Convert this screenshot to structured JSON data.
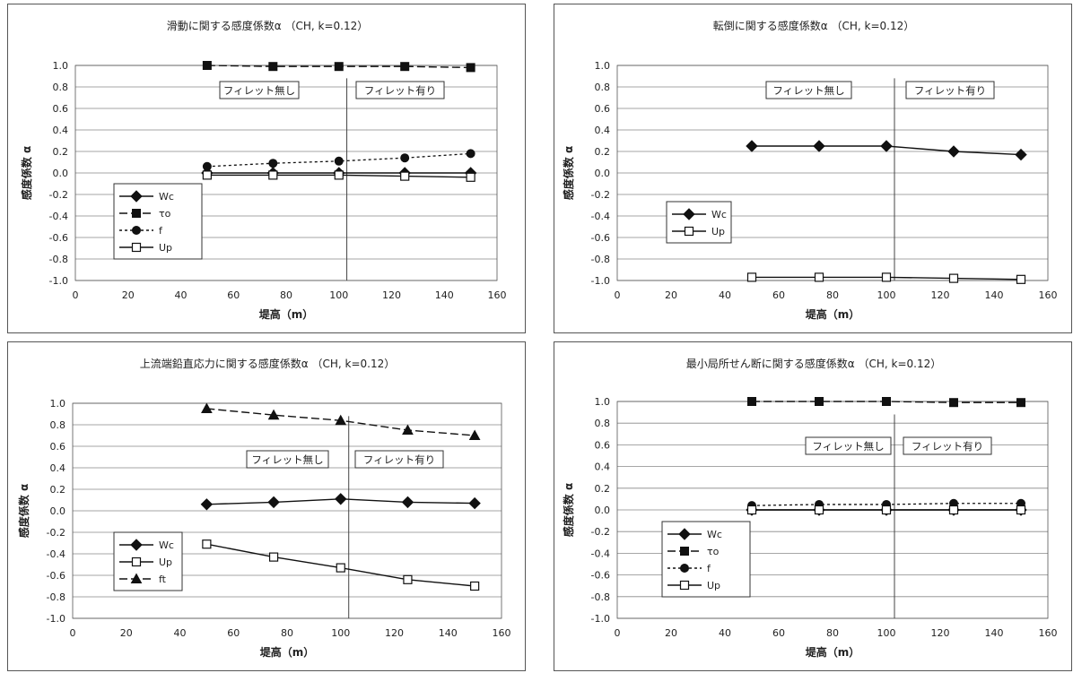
{
  "chart_data": [
    {
      "type": "line",
      "title": "滑動に関する感度係数α （CH, k=0.12）",
      "xlabel": "堤高（m）",
      "ylabel": "感度係数 α",
      "xlim": [
        0,
        160
      ],
      "ylim": [
        -1.0,
        1.0
      ],
      "xticks": [
        "0",
        "20",
        "40",
        "60",
        "80",
        "100",
        "120",
        "140",
        "160"
      ],
      "yticks": [
        "1.0",
        "0.8",
        "0.6",
        "0.4",
        "0.2",
        "0.0",
        "-0.2",
        "-0.4",
        "-0.6",
        "-0.8",
        "-1.0"
      ],
      "x": [
        50,
        75,
        100,
        125,
        150
      ],
      "grid": "horizontal",
      "legend_position": "lower-left",
      "divider_x": 103,
      "region_labels": [
        "フィレット無し",
        "フィレット有り"
      ],
      "series": [
        {
          "name": "Wc",
          "marker": "diamond",
          "dash": "solid",
          "values": [
            0.0,
            0.0,
            0.0,
            0.0,
            0.0
          ]
        },
        {
          "name": "τo",
          "marker": "square",
          "dash": "longdash",
          "values": [
            1.0,
            0.99,
            0.99,
            0.99,
            0.98
          ]
        },
        {
          "name": "f",
          "marker": "circle",
          "dash": "dotted",
          "values": [
            0.06,
            0.09,
            0.11,
            0.14,
            0.18
          ]
        },
        {
          "name": "Up",
          "marker": "opensquare",
          "dash": "solid",
          "values": [
            -0.02,
            -0.02,
            -0.02,
            -0.03,
            -0.04
          ]
        }
      ]
    },
    {
      "type": "line",
      "title": "転倒に関する感度係数α （CH, k=0.12）",
      "xlabel": "堤高（m）",
      "ylabel": "感度係数 α",
      "xlim": [
        0,
        160
      ],
      "ylim": [
        -1.0,
        1.0
      ],
      "xticks": [
        "0",
        "20",
        "40",
        "60",
        "80",
        "100",
        "120",
        "140",
        "160"
      ],
      "yticks": [
        "1.0",
        "0.8",
        "0.6",
        "0.4",
        "0.2",
        "0.0",
        "-0.2",
        "-0.4",
        "-0.6",
        "-0.8",
        "-1.0"
      ],
      "x": [
        50,
        75,
        100,
        125,
        150
      ],
      "grid": "horizontal",
      "legend_position": "left",
      "divider_x": 103,
      "region_labels": [
        "フィレット無し",
        "フィレット有り"
      ],
      "series": [
        {
          "name": "Wc",
          "marker": "diamond",
          "dash": "solid",
          "values": [
            0.25,
            0.25,
            0.25,
            0.2,
            0.17
          ]
        },
        {
          "name": "Up",
          "marker": "opensquare",
          "dash": "solid",
          "values": [
            -0.97,
            -0.97,
            -0.97,
            -0.98,
            -0.99
          ]
        }
      ]
    },
    {
      "type": "line",
      "title": "上流端鉛直応力に関する感度係数α （CH, k=0.12）",
      "xlabel": "堤高（m）",
      "ylabel": "感度係数 α",
      "xlim": [
        0,
        160
      ],
      "ylim": [
        -1.0,
        1.0
      ],
      "xticks": [
        "0",
        "20",
        "40",
        "60",
        "80",
        "100",
        "120",
        "140",
        "160"
      ],
      "yticks": [
        "1.0",
        "0.8",
        "0.6",
        "0.4",
        "0.2",
        "0.0",
        "-0.2",
        "-0.4",
        "-0.6",
        "-0.8",
        "-1.0"
      ],
      "x": [
        50,
        75,
        100,
        125,
        150
      ],
      "grid": "horizontal",
      "legend_position": "lower-left",
      "divider_x": 103,
      "region_labels": [
        "フィレット無し",
        "フィレット有り"
      ],
      "series": [
        {
          "name": "Wc",
          "marker": "diamond",
          "dash": "solid",
          "values": [
            0.06,
            0.08,
            0.11,
            0.08,
            0.07
          ]
        },
        {
          "name": "Up",
          "marker": "opensquare",
          "dash": "solid",
          "values": [
            -0.31,
            -0.43,
            -0.53,
            -0.64,
            -0.7
          ]
        },
        {
          "name": "ft",
          "marker": "triangle",
          "dash": "longdash",
          "values": [
            0.95,
            0.89,
            0.84,
            0.75,
            0.7
          ]
        }
      ]
    },
    {
      "type": "line",
      "title": "最小局所せん断に関する感度係数α （CH, k=0.12）",
      "xlabel": "堤高（m）",
      "ylabel": "感度係数 α",
      "xlim": [
        0,
        160
      ],
      "ylim": [
        -1.0,
        1.0
      ],
      "xticks": [
        "0",
        "20",
        "40",
        "60",
        "80",
        "100",
        "120",
        "140",
        "160"
      ],
      "yticks": [
        "1.0",
        "0.8",
        "0.6",
        "0.4",
        "0.2",
        "0.0",
        "-0.2",
        "-0.4",
        "-0.6",
        "-0.8",
        "-1.0"
      ],
      "x": [
        50,
        75,
        100,
        125,
        150
      ],
      "grid": "horizontal",
      "legend_position": "lower-left",
      "divider_x": 103,
      "region_labels": [
        "フィレット無し",
        "フィレット有り"
      ],
      "series": [
        {
          "name": "Wc",
          "marker": "diamond",
          "dash": "solid",
          "values": [
            0.0,
            0.0,
            0.0,
            0.0,
            0.0
          ]
        },
        {
          "name": "τo",
          "marker": "square",
          "dash": "longdash",
          "values": [
            1.0,
            1.0,
            1.0,
            0.99,
            0.99
          ]
        },
        {
          "name": "f",
          "marker": "circle",
          "dash": "dotted",
          "values": [
            0.04,
            0.05,
            0.05,
            0.06,
            0.06
          ]
        },
        {
          "name": "Up",
          "marker": "opensquare",
          "dash": "solid",
          "values": [
            0.0,
            0.0,
            0.0,
            0.0,
            0.0
          ]
        }
      ]
    }
  ]
}
